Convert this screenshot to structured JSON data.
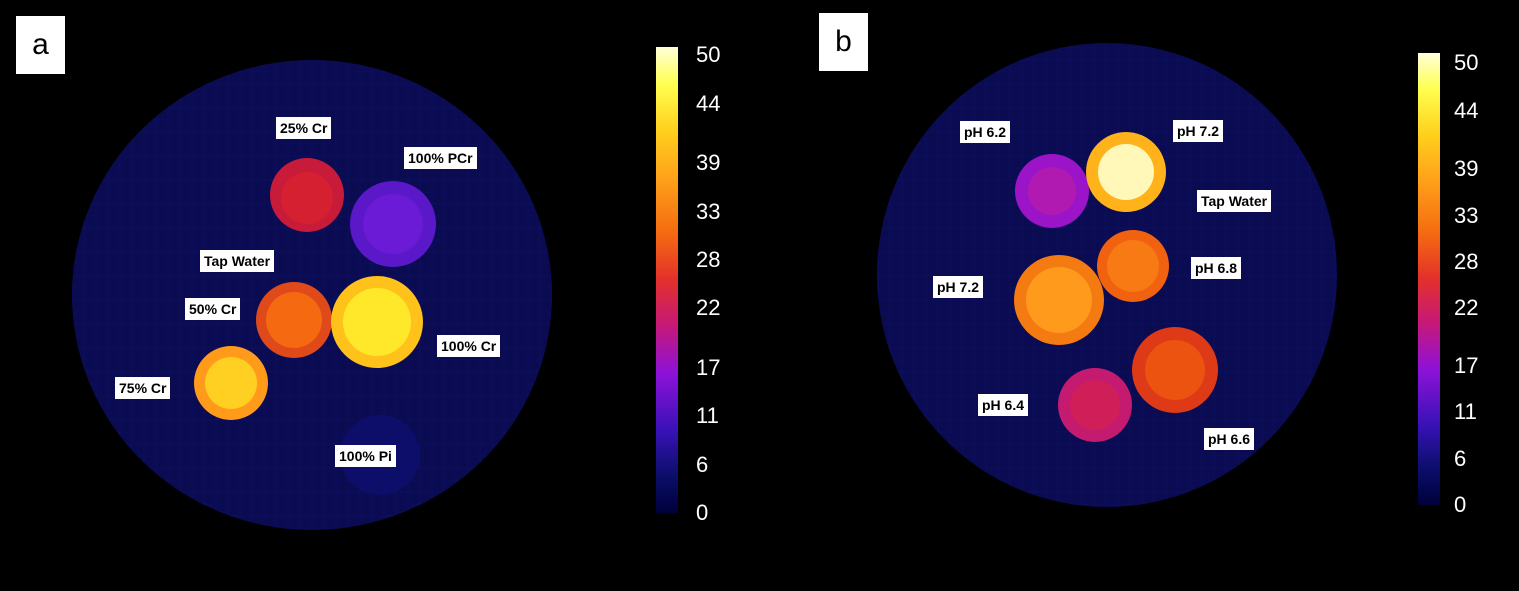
{
  "colorbar_ticks": [
    "50",
    "44",
    "39",
    "33",
    "28",
    "22",
    "17",
    "11",
    "6",
    "0"
  ],
  "colorbar_range": [
    0,
    50
  ],
  "panel_a": {
    "letter": "a",
    "labels": [
      "25% Cr",
      "100% PCr",
      "Tap Water",
      "50% Cr",
      "100% Cr",
      "75% Cr",
      "100% Pi"
    ]
  },
  "panel_b": {
    "letter": "b",
    "labels": [
      "pH 6.2",
      "pH 7.2",
      "Tap Water",
      "pH 7.2",
      "pH 6.8",
      "pH 6.4",
      "pH 6.6"
    ]
  },
  "colors": {
    "background": "#000000",
    "phantom": "#0a0c55",
    "label_bg": "#ffffff"
  }
}
